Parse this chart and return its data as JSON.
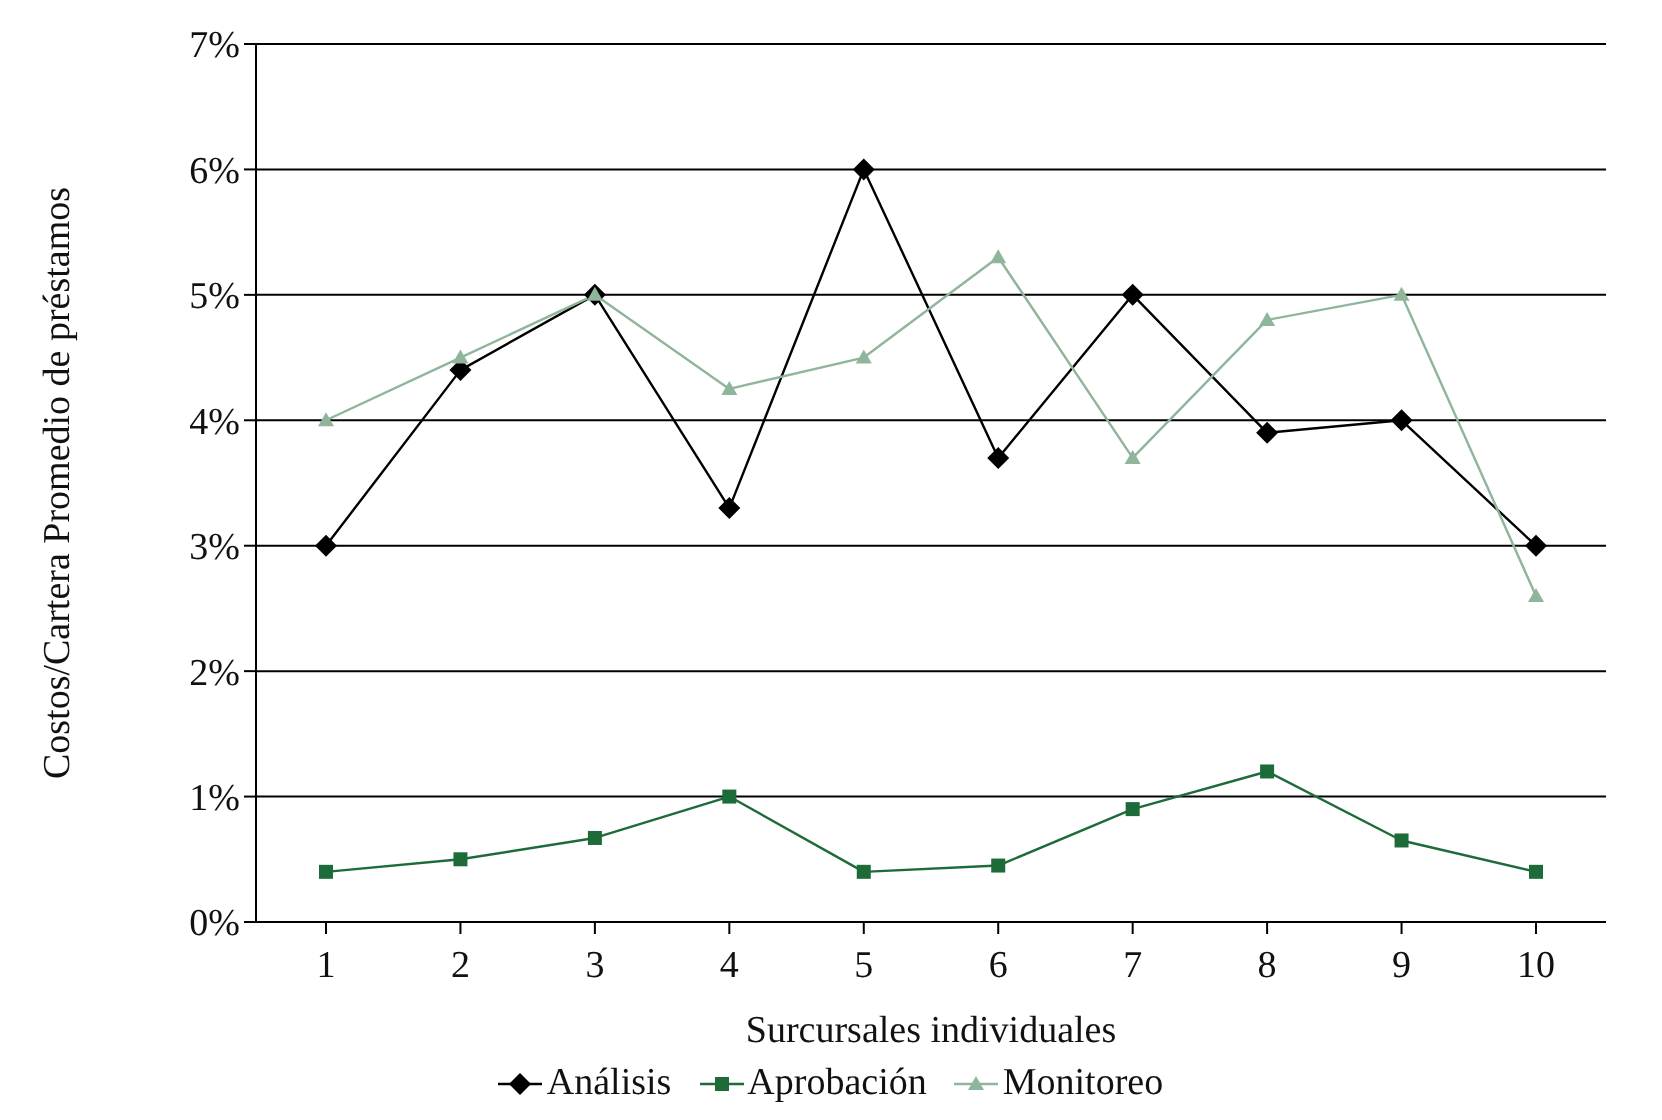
{
  "chart_data": {
    "type": "line",
    "xlabel": "Surcursales individuales",
    "ylabel": "Costos/Cartera Promedio de préstamos",
    "categories": [
      "1",
      "2",
      "3",
      "4",
      "5",
      "6",
      "7",
      "8",
      "9",
      "10"
    ],
    "series": [
      {
        "name": "Análisis",
        "color": "#000000",
        "marker": "diamond",
        "values": [
          3.0,
          4.4,
          5.0,
          3.3,
          6.0,
          3.7,
          5.0,
          3.9,
          4.0,
          3.0
        ]
      },
      {
        "name": "Aprobación",
        "color": "#1e6b3a",
        "marker": "square",
        "values": [
          0.4,
          0.5,
          0.67,
          1.0,
          0.4,
          0.45,
          0.9,
          1.2,
          0.65,
          0.4
        ]
      },
      {
        "name": "Monitoreo",
        "color": "#8fb59a",
        "marker": "triangle",
        "values": [
          4.0,
          4.5,
          5.0,
          4.25,
          4.5,
          5.3,
          3.7,
          4.8,
          5.0,
          2.6
        ]
      }
    ],
    "ylim": [
      0,
      7
    ],
    "yticks": [
      {
        "value": 0,
        "label": "0%"
      },
      {
        "value": 1,
        "label": "1%"
      },
      {
        "value": 2,
        "label": "2%"
      },
      {
        "value": 3,
        "label": "3%"
      },
      {
        "value": 4,
        "label": "4%"
      },
      {
        "value": 5,
        "label": "5%"
      },
      {
        "value": 6,
        "label": "6%"
      },
      {
        "value": 7,
        "label": "7%"
      }
    ],
    "grid": "y",
    "legend": "bottom",
    "line_style": "solid"
  }
}
